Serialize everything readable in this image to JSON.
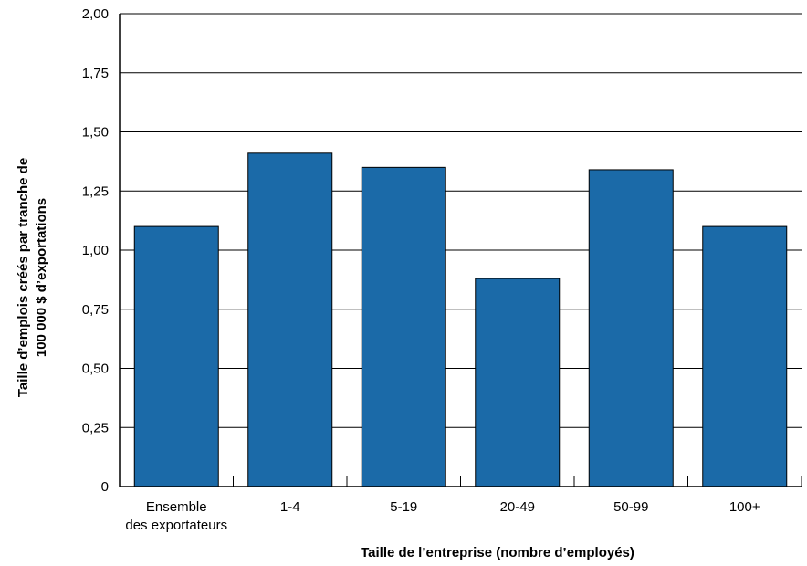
{
  "chart_data": {
    "type": "bar",
    "categories": [
      [
        "Ensemble",
        "des exportateurs"
      ],
      [
        "1-4"
      ],
      [
        "5-19"
      ],
      [
        "20-49"
      ],
      [
        "50-99"
      ],
      [
        "100+"
      ]
    ],
    "values": [
      1.1,
      1.41,
      1.35,
      0.88,
      1.34,
      1.1
    ],
    "title": "",
    "xlabel": "Taille de l’entreprise (nombre d’employés)",
    "ylabel_lines": [
      "Taille d’emplois créés par tranche de",
      "100 000 $ d’exportations"
    ],
    "ylim": [
      0,
      2
    ],
    "yticks": [
      0,
      0.25,
      0.5,
      0.75,
      1.0,
      1.25,
      1.5,
      1.75,
      2.0
    ],
    "ytick_labels": [
      "0",
      "0,25",
      "0,50",
      "0,75",
      "1,00",
      "1,25",
      "1,50",
      "1,75",
      "2,00"
    ],
    "grid": true,
    "legend": "none",
    "colors": {
      "bar": "#1b6aa8",
      "grid": "#000000",
      "text": "#000000"
    }
  }
}
